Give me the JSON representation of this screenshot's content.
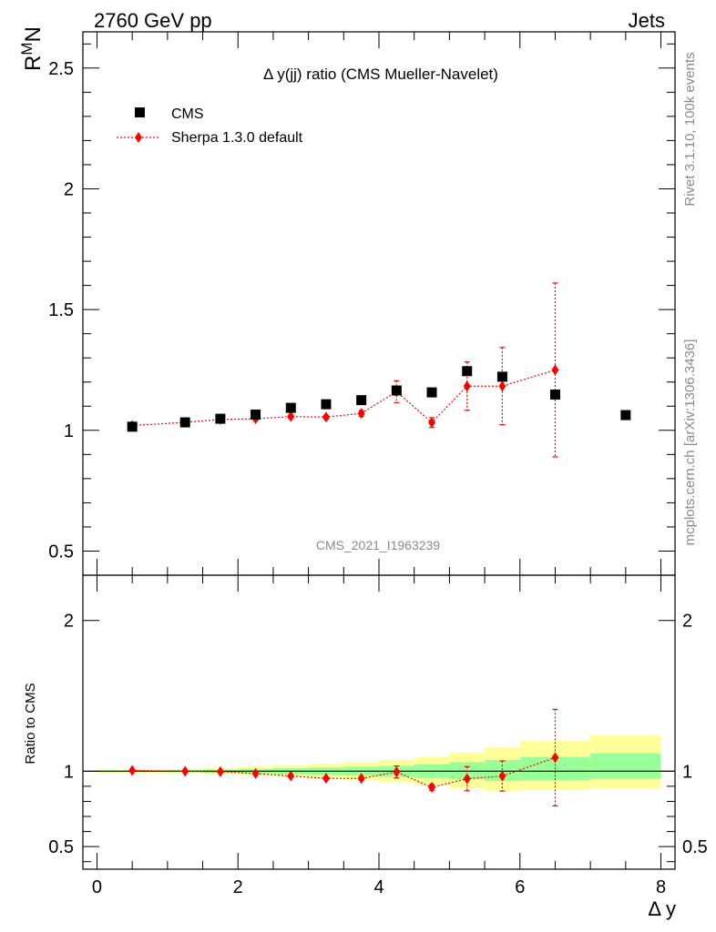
{
  "header": {
    "left": "2760 GeV pp",
    "right": "Jets"
  },
  "side_labels": {
    "rivet": "Rivet 3.1.10,  100k events",
    "mcplots": "mcplots.cern.ch [arXiv:1306.3436]"
  },
  "analysis_id": "CMS_2021_I1963239",
  "chart_data": [
    {
      "type": "scatter",
      "panel": "main",
      "title": "Δ y(jj) ratio (CMS Mueller-Navelet)",
      "ylabel_main": "R",
      "ylabel_sup": "M",
      "ylabel_sub": "N",
      "xlim": [
        -0.2,
        8.2
      ],
      "ylim": [
        0.4,
        2.65
      ],
      "yticks": [
        0.5,
        1,
        1.5,
        2,
        2.5
      ],
      "ytick_labels": [
        "0.5",
        "1",
        "1.5",
        "2",
        "2.5"
      ],
      "legend_position": "top-left",
      "series": [
        {
          "name": "CMS",
          "marker": "square",
          "color": "#000000",
          "x": [
            0.5,
            1.25,
            1.75,
            2.25,
            2.75,
            3.25,
            3.75,
            4.25,
            4.75,
            5.25,
            5.75,
            6.5,
            7.5
          ],
          "y": [
            1.015,
            1.033,
            1.048,
            1.065,
            1.093,
            1.108,
            1.125,
            1.165,
            1.157,
            1.245,
            1.222,
            1.148,
            1.063
          ]
        },
        {
          "name": "Sherpa 1.3.0 default",
          "marker": "diamond",
          "color": "#ff0000",
          "x": [
            0.5,
            1.25,
            1.75,
            2.25,
            2.75,
            3.25,
            3.75,
            4.25,
            4.75,
            5.25,
            5.75,
            6.5
          ],
          "y": [
            1.02,
            1.033,
            1.045,
            1.048,
            1.057,
            1.055,
            1.07,
            1.16,
            1.032,
            1.183,
            1.183,
            1.25
          ],
          "yerr": [
            0.005,
            0.005,
            0.005,
            0.006,
            0.007,
            0.008,
            0.012,
            0.045,
            0.02,
            0.1,
            0.16,
            0.36
          ]
        }
      ]
    },
    {
      "type": "scatter",
      "panel": "ratio",
      "xlabel": "Δ y",
      "ylabel": "Ratio to CMS",
      "xlim": [
        -0.2,
        8.2
      ],
      "ylim": [
        0.35,
        2.3
      ],
      "xticks": [
        0,
        2,
        4,
        6,
        8
      ],
      "xtick_labels": [
        "0",
        "2",
        "4",
        "6",
        "8"
      ],
      "yticks": [
        0.5,
        1,
        2
      ],
      "ytick_labels": [
        "0.5",
        "1",
        "2"
      ],
      "bands": {
        "bin_edges": [
          0.0,
          1.0,
          1.5,
          2.0,
          2.5,
          3.0,
          3.5,
          4.0,
          4.5,
          5.0,
          5.5,
          6.0,
          7.0,
          8.0
        ],
        "green_low": [
          0.995,
          0.993,
          0.99,
          0.985,
          0.98,
          0.975,
          0.97,
          0.965,
          0.955,
          0.945,
          0.935,
          0.94,
          0.95
        ],
        "green_high": [
          1.005,
          1.007,
          1.01,
          1.015,
          1.02,
          1.025,
          1.03,
          1.035,
          1.045,
          1.06,
          1.075,
          1.095,
          1.12
        ],
        "yellow_low": [
          0.99,
          0.985,
          0.98,
          0.97,
          0.96,
          0.95,
          0.94,
          0.93,
          0.91,
          0.885,
          0.87,
          0.875,
          0.885
        ],
        "yellow_high": [
          1.01,
          1.015,
          1.02,
          1.03,
          1.04,
          1.05,
          1.06,
          1.075,
          1.095,
          1.125,
          1.16,
          1.2,
          1.24
        ]
      },
      "series": [
        {
          "name": "Sherpa 1.3.0 default",
          "marker": "diamond",
          "color": "#ff0000",
          "x": [
            0.5,
            1.25,
            1.75,
            2.25,
            2.75,
            3.25,
            3.75,
            4.25,
            4.75,
            5.25,
            5.75,
            6.5
          ],
          "y": [
            1.005,
            1.0,
            0.997,
            0.985,
            0.968,
            0.953,
            0.952,
            0.995,
            0.893,
            0.95,
            0.968,
            1.09
          ],
          "yerr": [
            0.005,
            0.005,
            0.005,
            0.006,
            0.007,
            0.008,
            0.012,
            0.04,
            0.02,
            0.08,
            0.1,
            0.32
          ]
        }
      ]
    }
  ]
}
